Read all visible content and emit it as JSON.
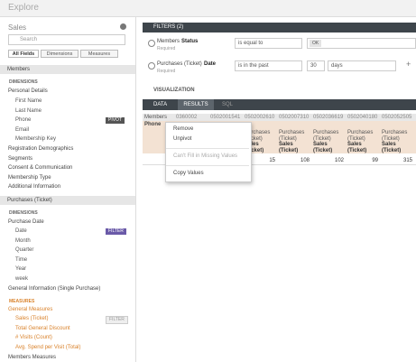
{
  "header": {
    "title": "Explore"
  },
  "sidebar": {
    "title": "Sales",
    "search_placeholder": "Search",
    "tabs": [
      "All Fields",
      "Dimensions",
      "Measures"
    ],
    "members": {
      "title": "Members",
      "dimensions_label": "DIMENSIONS",
      "personal_details": {
        "label": "Personal Details",
        "fields": [
          "First Name",
          "Last Name",
          "Phone",
          "Email",
          "Membership Key"
        ]
      },
      "pivot_badge": "PIVOT",
      "groups": [
        "Registration Demographics",
        "Segments",
        "Consent & Communication",
        "Membership Type",
        "Additional Information"
      ]
    },
    "purchases": {
      "title": "Purchases (Ticket)",
      "dimensions_label": "DIMENSIONS",
      "purchase_date": {
        "label": "Purchase Date",
        "fields": [
          "Date",
          "Month",
          "Quarter",
          "Time",
          "Year",
          "week"
        ]
      },
      "filter_badge": "FILTER",
      "general_information": "General Information (Single Purchase)",
      "measures_label": "MEASURES",
      "general_measures": {
        "label": "General Measures",
        "fields": [
          "Sales (Ticket)",
          "Total General Discount",
          "# Visits (Count)",
          "Avg. Spend per Visit (Total)"
        ]
      },
      "members_measures": "Members Measures"
    }
  },
  "filters": {
    "title": "FILTERS (2)",
    "rows": [
      {
        "view": "Members",
        "field": "Status",
        "note": "Required",
        "operator": "is equal to",
        "value": "OK"
      },
      {
        "view": "Purchases (Ticket)",
        "field": "Date",
        "note": "Required",
        "operator": "is in the past",
        "value": "30",
        "unit": "days"
      }
    ]
  },
  "visualization": "VISUALIZATION",
  "data": {
    "title": "DATA",
    "tabs": [
      "RESULTS",
      "SQL"
    ],
    "row_header": "Members",
    "row_subheader": "Phone",
    "pivot_values": [
      "0360002",
      "0502001541",
      "0502002610",
      "0502007310",
      "0502036619",
      "0502040180",
      "0502052505"
    ],
    "column_view": "Purchases (Ticket)",
    "column_field": "Sales (Ticket)",
    "values": [
      15,
      108,
      102,
      99,
      315
    ]
  },
  "context_menu": [
    "Remove",
    "Unpivot",
    "Can't Fill in Missing Values",
    "Copy Values"
  ]
}
